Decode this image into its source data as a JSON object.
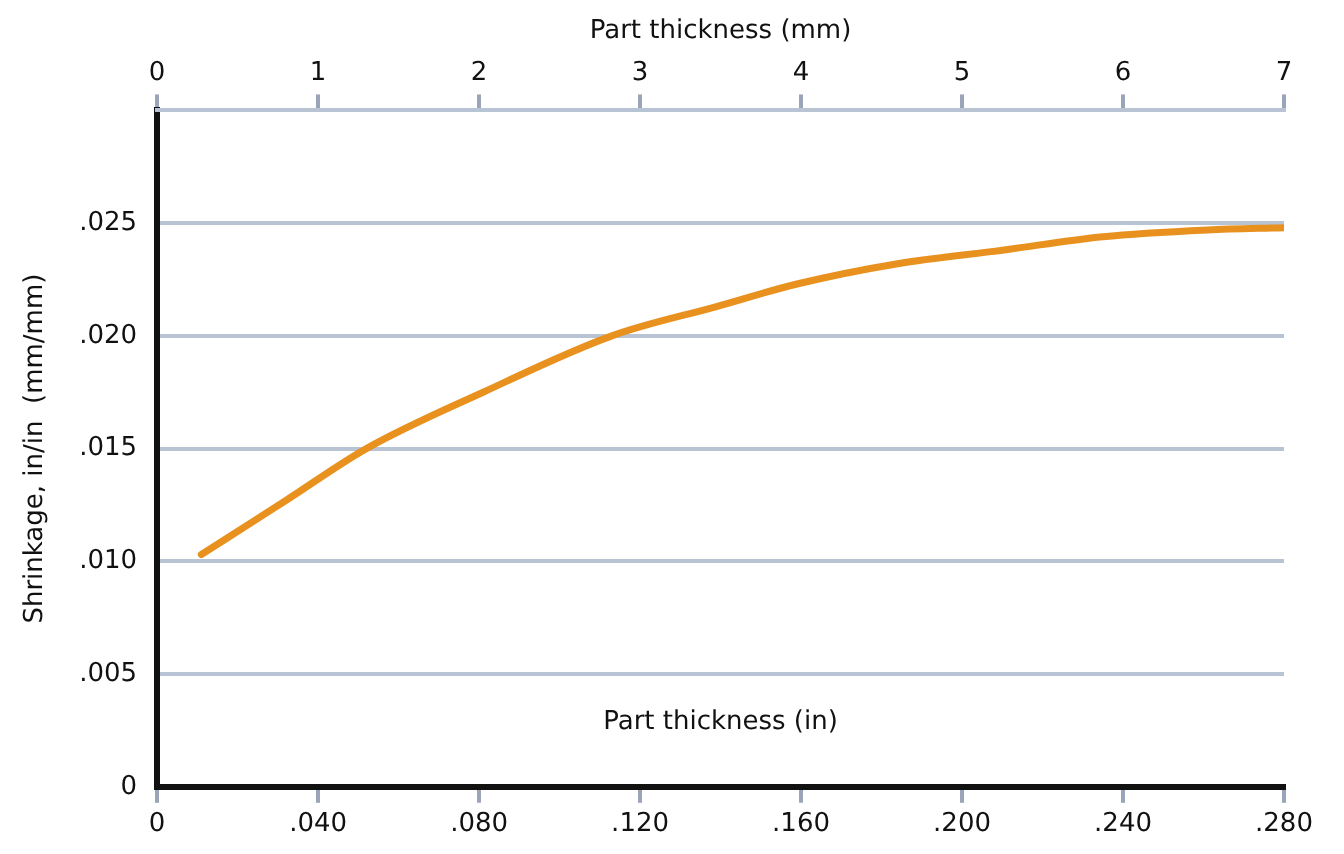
{
  "chart_data": {
    "type": "line",
    "xlabel": "Part thickness (in)",
    "x2label": "Part thickness (mm)",
    "ylabel": "Shrinkage, in/in  (mm/mm)",
    "xlim": [
      0,
      0.28
    ],
    "xticks": [
      0,
      {
        "value": 0.04,
        "label": ".040"
      },
      {
        "value": 0.08,
        "label": ".080"
      },
      {
        "value": 0.12,
        "label": ".120"
      },
      {
        "value": 0.16,
        "label": ".160"
      },
      {
        "value": 0.2,
        "label": ".200"
      },
      {
        "value": 0.24,
        "label": ".240"
      },
      {
        "value": 0.28,
        "label": ".280"
      }
    ],
    "x2lim": [
      0,
      7
    ],
    "x2ticks": [
      0,
      1,
      2,
      3,
      4,
      5,
      6,
      7
    ],
    "ylim": [
      0,
      0.03
    ],
    "yticks": [
      0,
      {
        "value": 0.005,
        "label": ".005"
      },
      {
        "value": 0.01,
        "label": ".010"
      },
      {
        "value": 0.015,
        "label": ".015"
      },
      {
        "value": 0.02,
        "label": ".020"
      },
      {
        "value": 0.025,
        "label": ".025"
      },
      {
        "value": 0.03,
        "label": null
      }
    ],
    "grid": "y",
    "legend": false,
    "marker": "none",
    "line_style": "solid",
    "series": [
      {
        "color": "#e8911f",
        "x": [
          0.011,
          0.032,
          0.052,
          0.081,
          0.113,
          0.139,
          0.159,
          0.184,
          0.21,
          0.235,
          0.261,
          0.28
        ],
        "values": [
          0.0103,
          0.0127,
          0.015,
          0.0175,
          0.02,
          0.0213,
          0.0223,
          0.0232,
          0.0238,
          0.0244,
          0.0247,
          0.0248
        ]
      }
    ]
  }
}
